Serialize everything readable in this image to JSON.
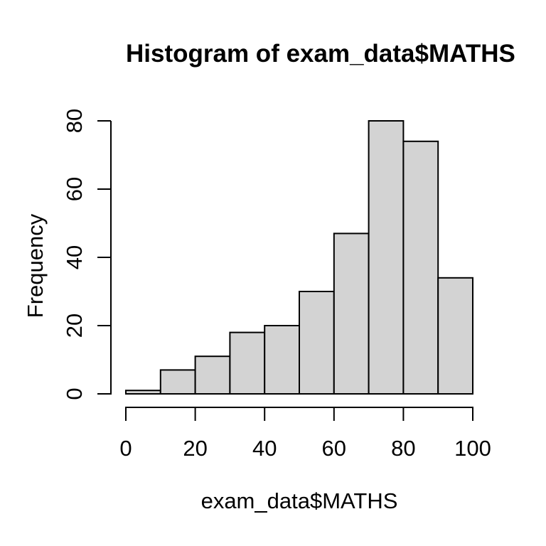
{
  "chart_data": {
    "type": "bar",
    "subtype": "histogram",
    "title": "Histogram of exam_data$MATHS",
    "xlabel": "exam_data$MATHS",
    "ylabel": "Frequency",
    "bin_width": 10,
    "bin_edges": [
      0,
      10,
      20,
      30,
      40,
      50,
      60,
      70,
      80,
      90,
      100
    ],
    "counts": [
      1,
      7,
      11,
      18,
      20,
      30,
      47,
      80,
      74,
      34
    ],
    "x_ticks": [
      0,
      20,
      40,
      60,
      80,
      100
    ],
    "y_ticks": [
      0,
      20,
      40,
      60,
      80
    ],
    "xlim": [
      0,
      100
    ],
    "ylim": [
      0,
      80
    ],
    "grid": false,
    "colors": {
      "bar_fill": "#D3D3D3",
      "bar_border": "#000000",
      "axis": "#000000",
      "text": "#000000",
      "background": "#FFFFFF"
    }
  }
}
